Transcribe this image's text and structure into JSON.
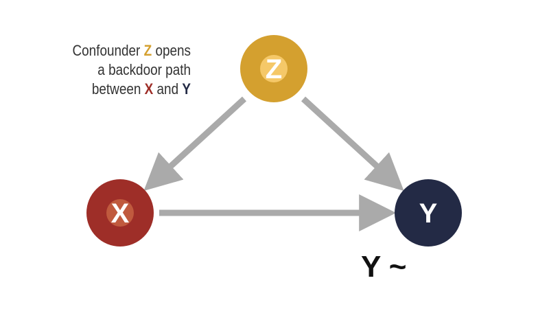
{
  "caption": {
    "line1_pre": "Confounder ",
    "line1_z": "Z",
    "line1_post": " opens",
    "line2": "a backdoor path",
    "line3_pre": "between ",
    "line3_x": "X",
    "line3_mid": " and ",
    "line3_y": "Y"
  },
  "nodes": {
    "z": {
      "label": "Z",
      "color": "#d4a02f",
      "inner_color": "#f5c868"
    },
    "x": {
      "label": "X",
      "color": "#9e2e28",
      "inner_color": "#c05a3e"
    },
    "y": {
      "label": "Y",
      "color": "#232a45"
    }
  },
  "edges": [
    {
      "from": "Z",
      "to": "X"
    },
    {
      "from": "Z",
      "to": "Y"
    },
    {
      "from": "X",
      "to": "Y"
    }
  ],
  "arrow_color": "#aaaaaa",
  "formula": "Y ~"
}
